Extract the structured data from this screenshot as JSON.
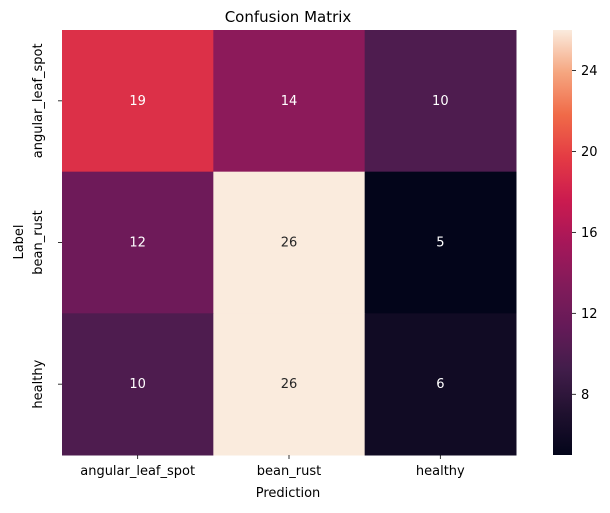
{
  "chart_data": {
    "type": "heatmap",
    "title": "Confusion Matrix",
    "xlabel": "Prediction",
    "ylabel": "Label",
    "x_categories": [
      "angular_leaf_spot",
      "bean_rust",
      "healthy"
    ],
    "y_categories": [
      "angular_leaf_spot",
      "bean_rust",
      "healthy"
    ],
    "values": [
      [
        19,
        14,
        10
      ],
      [
        12,
        26,
        5
      ],
      [
        10,
        26,
        6
      ]
    ],
    "colormap": "rocket",
    "vmin": 5,
    "vmax": 26,
    "colorbar_ticks": [
      8,
      12,
      16,
      20,
      24
    ]
  }
}
